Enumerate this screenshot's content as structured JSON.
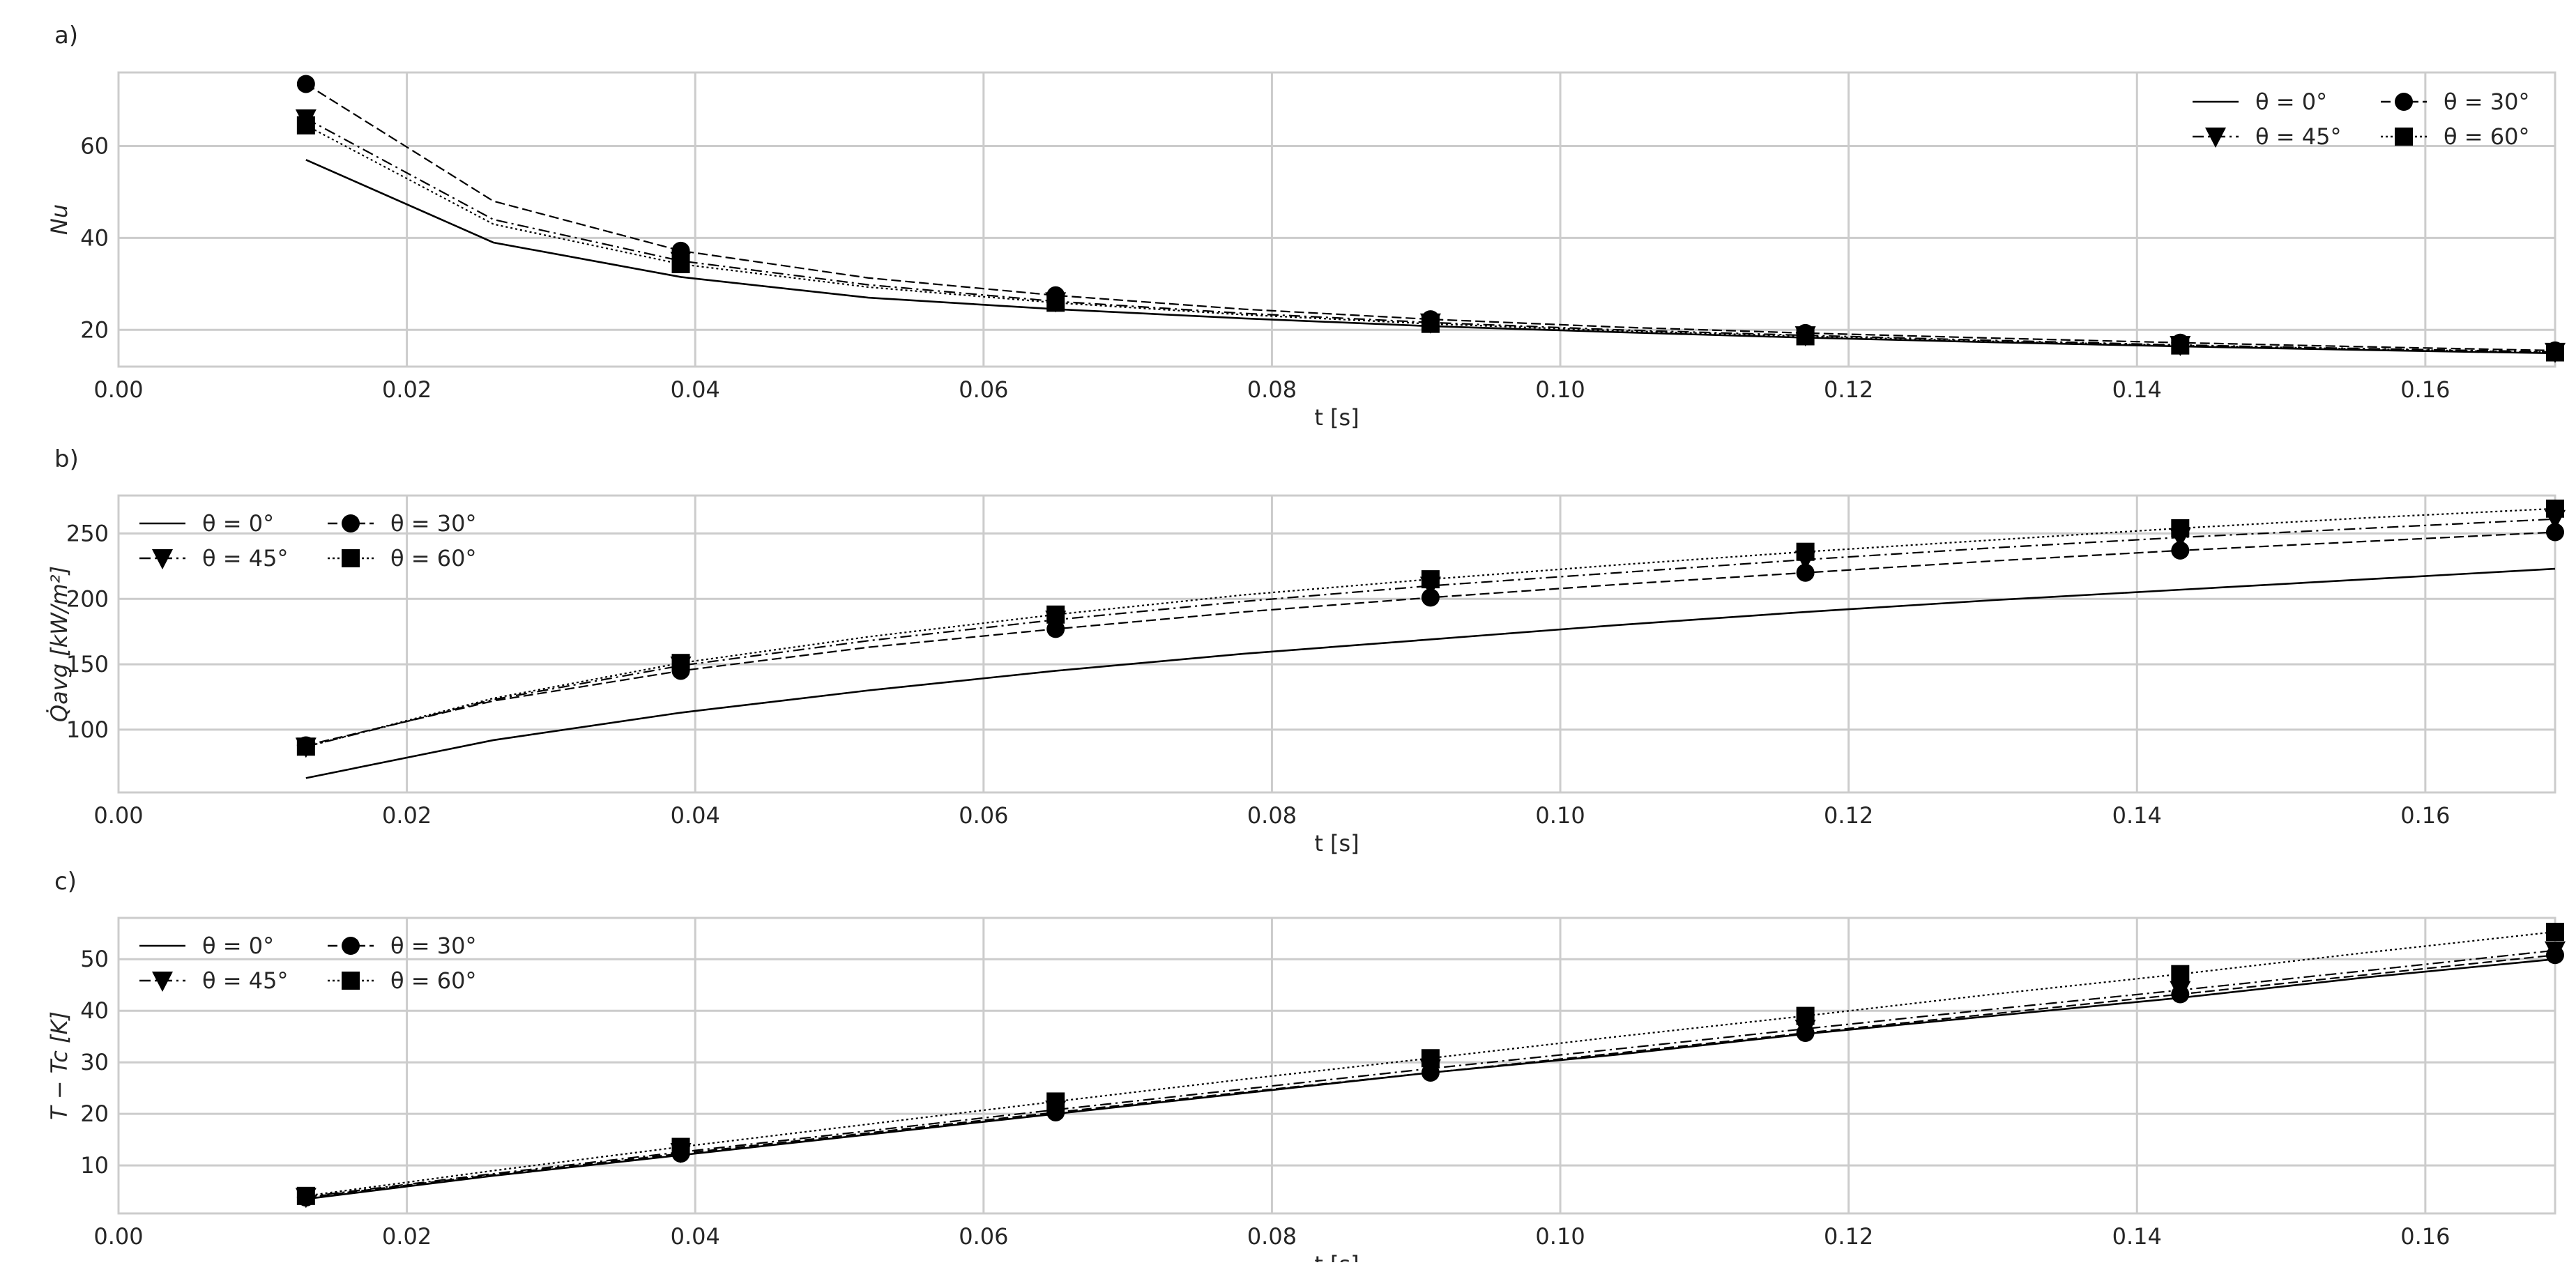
{
  "chart_data": [
    {
      "panel_label": "a)",
      "type": "line",
      "xlabel": "t [s]",
      "ylabel": "Nu",
      "xlim": [
        0,
        0.169
      ],
      "ylim": [
        12,
        76
      ],
      "xticks": [
        "0.00",
        "0.02",
        "0.04",
        "0.06",
        "0.08",
        "0.10",
        "0.12",
        "0.14",
        "0.16"
      ],
      "yticks": [
        "20",
        "40",
        "60"
      ],
      "grid": true,
      "legend_placement": "top-right",
      "x": [
        0.013,
        0.026,
        0.039,
        0.052,
        0.065,
        0.078,
        0.091,
        0.104,
        0.117,
        0.13,
        0.143,
        0.156,
        0.169
      ],
      "series": [
        {
          "name": "θ = 0°",
          "style": "solid",
          "marker": "none",
          "values": [
            57,
            39,
            31.5,
            27,
            24.5,
            22.5,
            20.8,
            19.5,
            18.3,
            17.3,
            16.4,
            15.6,
            14.9
          ]
        },
        {
          "name": "θ = 30°",
          "style": "dashed",
          "marker": "circle",
          "values": [
            73.5,
            48,
            37.2,
            31.3,
            27.5,
            24.5,
            22.3,
            20.6,
            19.3,
            18.2,
            17.2,
            16.3,
            15.5
          ]
        },
        {
          "name": "θ = 45°",
          "style": "dashdot",
          "marker": "triangle-down",
          "values": [
            66,
            44,
            35,
            29.8,
            26.2,
            23.6,
            21.6,
            20,
            18.8,
            17.7,
            16.7,
            15.9,
            15.2
          ]
        },
        {
          "name": "θ = 60°",
          "style": "dotted",
          "marker": "square",
          "values": [
            64.5,
            43,
            34.3,
            29.3,
            25.9,
            23.3,
            21.3,
            19.8,
            18.6,
            17.5,
            16.6,
            15.8,
            15.1
          ]
        }
      ]
    },
    {
      "panel_label": "b)",
      "type": "line",
      "xlabel": "t [s]",
      "ylabel": "Q̇avg [kW/m²]",
      "xlim": [
        0,
        0.169
      ],
      "ylim": [
        52,
        279
      ],
      "xticks": [
        "0.00",
        "0.02",
        "0.04",
        "0.06",
        "0.08",
        "0.10",
        "0.12",
        "0.14",
        "0.16"
      ],
      "yticks": [
        "100",
        "150",
        "200",
        "250"
      ],
      "grid": true,
      "legend_placement": "top-left",
      "x": [
        0.013,
        0.026,
        0.039,
        0.052,
        0.065,
        0.078,
        0.091,
        0.104,
        0.117,
        0.13,
        0.143,
        0.156,
        0.169
      ],
      "series": [
        {
          "name": "θ = 0°",
          "style": "solid",
          "marker": "none",
          "values": [
            63,
            92,
            113,
            130,
            145,
            158,
            169,
            180,
            190,
            199,
            207,
            215,
            223
          ]
        },
        {
          "name": "θ = 30°",
          "style": "dashed",
          "marker": "circle",
          "values": [
            88,
            122,
            145,
            163,
            177,
            190,
            201,
            211,
            220,
            229,
            237,
            244,
            251
          ]
        },
        {
          "name": "θ = 45°",
          "style": "dashdot",
          "marker": "triangle-down",
          "values": [
            87,
            123,
            149,
            168,
            184,
            198,
            210,
            220,
            230,
            239,
            247,
            254,
            261
          ]
        },
        {
          "name": "θ = 60°",
          "style": "dotted",
          "marker": "square",
          "values": [
            87,
            124,
            151,
            171,
            188,
            203,
            215,
            226,
            236,
            245,
            254,
            262,
            269
          ]
        }
      ]
    },
    {
      "panel_label": "c)",
      "type": "line",
      "xlabel": "t [s]",
      "ylabel": "T − Tc [K]",
      "xlim": [
        0,
        0.169
      ],
      "ylim": [
        0.7,
        58
      ],
      "xticks": [
        "0.00",
        "0.02",
        "0.04",
        "0.06",
        "0.08",
        "0.10",
        "0.12",
        "0.14",
        "0.16"
      ],
      "yticks": [
        "10",
        "20",
        "30",
        "40",
        "50"
      ],
      "grid": true,
      "legend_placement": "top-left",
      "x": [
        0.013,
        0.026,
        0.039,
        0.052,
        0.065,
        0.078,
        0.091,
        0.104,
        0.117,
        0.13,
        0.143,
        0.156,
        0.169
      ],
      "series": [
        {
          "name": "θ = 0°",
          "style": "solid",
          "marker": "none",
          "values": [
            3.5,
            8,
            12,
            16,
            20,
            24,
            28,
            31.5,
            35.5,
            39,
            42.5,
            46.5,
            50
          ]
        },
        {
          "name": "θ = 30°",
          "style": "dashed",
          "marker": "circle",
          "values": [
            3.8,
            8.2,
            12.3,
            16.3,
            20.3,
            24.2,
            28,
            31.8,
            35.7,
            39.4,
            43.2,
            47,
            50.8
          ]
        },
        {
          "name": "θ = 45°",
          "style": "dashdot",
          "marker": "triangle-down",
          "values": [
            3.9,
            8.4,
            12.6,
            16.7,
            20.8,
            24.8,
            28.8,
            32.6,
            36.5,
            40.3,
            44,
            47.8,
            51.7
          ]
        },
        {
          "name": "θ = 60°",
          "style": "dotted",
          "marker": "square",
          "values": [
            4.1,
            9,
            13.6,
            18,
            22.4,
            26.7,
            30.8,
            35,
            39,
            43.2,
            47.1,
            51.3,
            55.3
          ]
        }
      ]
    }
  ],
  "colors": {
    "line": "#000000",
    "grid": "#cccccc",
    "text": "#262626"
  }
}
